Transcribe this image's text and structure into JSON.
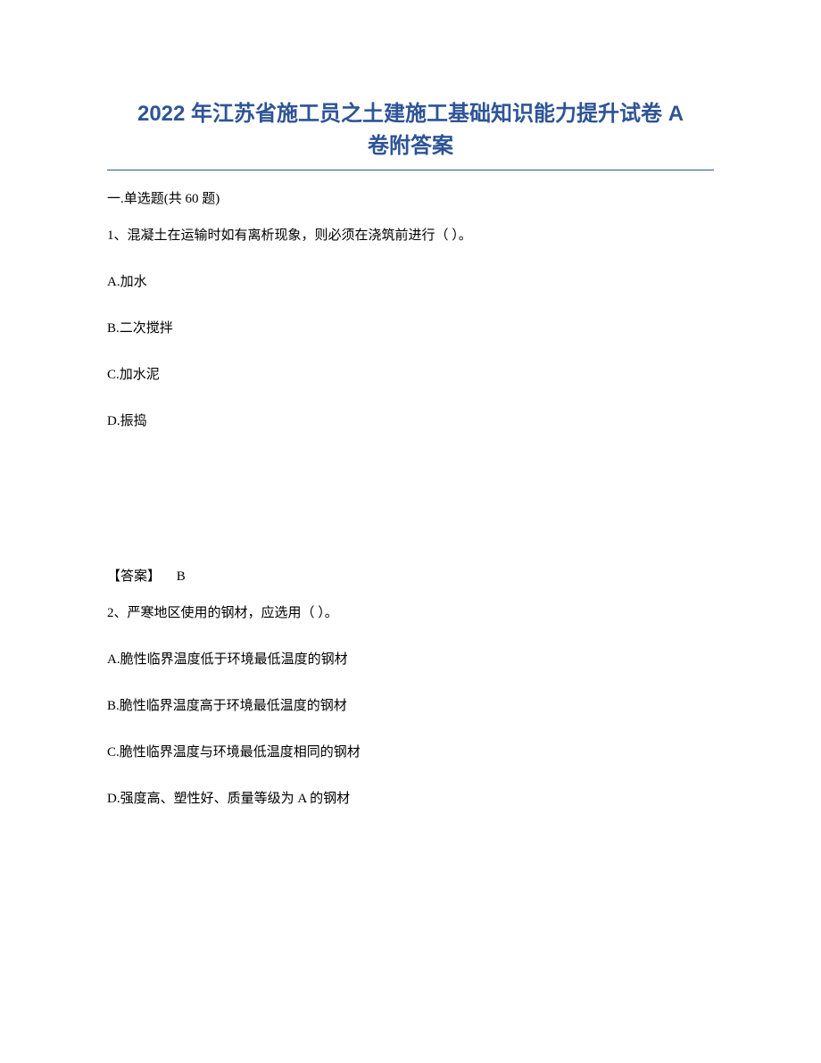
{
  "title": {
    "line1": "2022 年江苏省施工员之土建施工基础知识能力提升试卷 A",
    "line2": "卷附答案",
    "color": "#2e5496",
    "fontsize": 24
  },
  "section_header": "一.单选题(共 60 题)",
  "question1": {
    "text": "1、混凝土在运输时如有离析现象，则必须在浇筑前进行（ ）。",
    "options": {
      "A": "A.加水",
      "B": "B.二次搅拌",
      "C": "C.加水泥",
      "D": "D.振捣"
    },
    "answer_label": "【答案】",
    "answer_value": "B"
  },
  "question2": {
    "text": "2、严寒地区使用的钢材，应选用（ ）。",
    "options": {
      "A": "A.脆性临界温度低于环境最低温度的钢材",
      "B": "B.脆性临界温度高于环境最低温度的钢材",
      "C": "C.脆性临界温度与环境最低温度相同的钢材",
      "D": "D.强度高、塑性好、质量等级为 A 的钢材"
    }
  },
  "styling": {
    "background_color": "#ffffff",
    "text_color": "#000000",
    "body_fontsize": 15,
    "underline_color": "#2e5496"
  }
}
